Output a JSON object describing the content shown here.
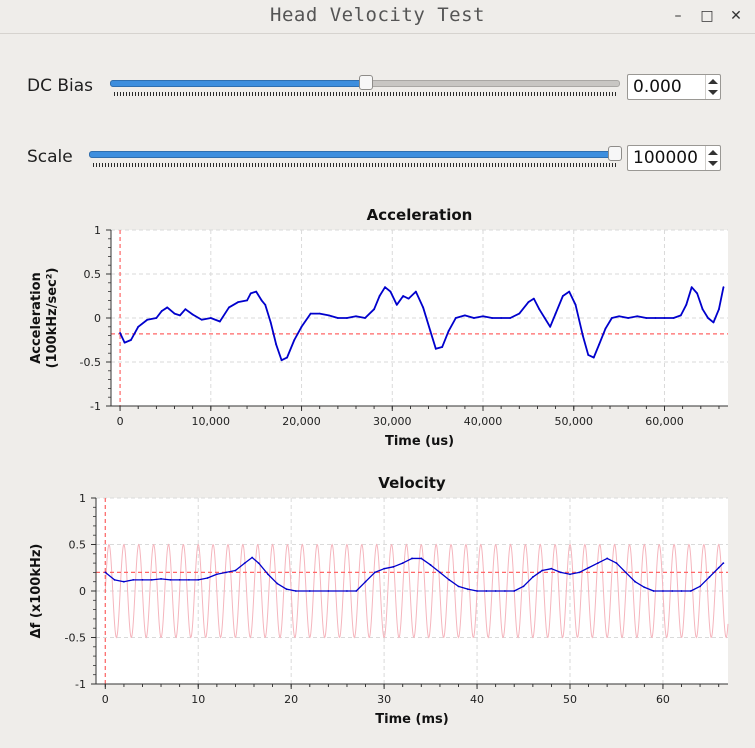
{
  "window": {
    "title": "Head Velocity Test",
    "minimize_glyph": "–",
    "maximize_glyph": "□",
    "close_glyph": "✕"
  },
  "controls": {
    "dc_bias": {
      "label": "DC Bias",
      "value": "0.000",
      "level_percent": 50
    },
    "scale": {
      "label": "Scale",
      "value": "100000",
      "level_percent": 100
    }
  },
  "colors": {
    "trace": "#0000cc",
    "reference": "#ff6666",
    "slider_fill": "#3d8ede",
    "background": "#efedea"
  },
  "chart_data": [
    {
      "type": "line",
      "title": "Acceleration",
      "xlabel": "Time (us)",
      "ylabel": [
        "Acceleration",
        "(100kHz/sec²)"
      ],
      "xlim": [
        -1000,
        67000
      ],
      "ylim": [
        -1,
        1
      ],
      "xticks": [
        0,
        10000,
        20000,
        30000,
        40000,
        50000,
        60000
      ],
      "xtick_labels": [
        "0",
        "10,000",
        "20,000",
        "30,000",
        "40,000",
        "50,000",
        "60,000"
      ],
      "yticks": [
        1,
        0.5,
        0,
        -0.5,
        -1
      ],
      "ytick_labels": [
        "1",
        "0.5",
        "0",
        "-0.5",
        "-1"
      ],
      "grid": true,
      "reference_lines": {
        "horizontal_y": -0.18,
        "vertical_x": 0
      },
      "series": [
        {
          "x": [
            0,
            500,
            1200,
            2000,
            3000,
            4000,
            4600,
            5200,
            6000,
            6600,
            7200,
            8000,
            9000,
            10000,
            11000,
            12000,
            13000,
            14000,
            14400,
            15000,
            15600,
            16000,
            16600,
            17200,
            17800,
            18400,
            19200,
            20000,
            21000,
            22000,
            23000,
            24000,
            25000,
            26000,
            27000,
            28000,
            28600,
            29200,
            29800,
            30500,
            31200,
            31800,
            32600,
            33400,
            34200,
            34800,
            35500,
            36200,
            37000,
            38000,
            39000,
            40000,
            41000,
            42000,
            43000,
            44000,
            45000,
            45600,
            46200,
            46800,
            47400,
            48000,
            48800,
            49500,
            50200,
            51000,
            51600,
            52200,
            52800,
            53500,
            54200,
            55000,
            56000,
            57000,
            58000,
            59000,
            60000,
            61000,
            61800,
            62400,
            63000,
            63600,
            64200,
            64800,
            65400,
            66000,
            66500
          ],
          "y": [
            -0.17,
            -0.28,
            -0.25,
            -0.1,
            -0.02,
            0.0,
            0.08,
            0.12,
            0.05,
            0.03,
            0.1,
            0.04,
            -0.02,
            0.0,
            -0.04,
            0.12,
            0.18,
            0.2,
            0.28,
            0.3,
            0.2,
            0.15,
            -0.05,
            -0.3,
            -0.48,
            -0.45,
            -0.25,
            -0.1,
            0.05,
            0.05,
            0.03,
            0.0,
            0.0,
            0.02,
            0.0,
            0.1,
            0.25,
            0.35,
            0.3,
            0.15,
            0.25,
            0.22,
            0.3,
            0.12,
            -0.15,
            -0.35,
            -0.33,
            -0.15,
            0.0,
            0.03,
            0.0,
            0.02,
            0.0,
            0.0,
            0.0,
            0.05,
            0.18,
            0.22,
            0.1,
            0.0,
            -0.1,
            0.05,
            0.25,
            0.3,
            0.15,
            -0.2,
            -0.42,
            -0.45,
            -0.3,
            -0.12,
            0.0,
            0.02,
            0.0,
            0.02,
            0.0,
            0.0,
            0.0,
            0.0,
            0.03,
            0.15,
            0.35,
            0.28,
            0.1,
            0.0,
            -0.05,
            0.1,
            0.35
          ]
        }
      ]
    },
    {
      "type": "line",
      "title": "Velocity",
      "xlabel": "Time (ms)",
      "ylabel": [
        "Δf (x100kHz)"
      ],
      "xlim": [
        -1,
        67
      ],
      "ylim": [
        -1,
        1
      ],
      "xticks": [
        0,
        10,
        20,
        30,
        40,
        50,
        60
      ],
      "xtick_labels": [
        "0",
        "10",
        "20",
        "30",
        "40",
        "50",
        "60"
      ],
      "yticks": [
        1,
        0.5,
        0,
        -0.5,
        -1
      ],
      "ytick_labels": [
        "1",
        "0.5",
        "0",
        "-0.5",
        "-1"
      ],
      "grid": true,
      "reference_lines": {
        "horizontal_y": 0.2,
        "vertical_x": 0
      },
      "reference_sine": {
        "amplitude": 0.5,
        "period_ms": 1.6
      },
      "series": [
        {
          "x": [
            0,
            1,
            2,
            3,
            4,
            5,
            6,
            7,
            8,
            9,
            10,
            11,
            12,
            13,
            14,
            15,
            15.8,
            16.5,
            17.5,
            18.5,
            19.5,
            20.5,
            22,
            24,
            26,
            27,
            28,
            29,
            30,
            31,
            32,
            33,
            34,
            35,
            36,
            37,
            38,
            39,
            40,
            41,
            42,
            43,
            44,
            45,
            46,
            47,
            48,
            49,
            50,
            51,
            52,
            53,
            54,
            55,
            56,
            57,
            58,
            59,
            60,
            61,
            62,
            63,
            64,
            65,
            66,
            66.5
          ],
          "y": [
            0.2,
            0.12,
            0.1,
            0.12,
            0.12,
            0.12,
            0.13,
            0.12,
            0.12,
            0.12,
            0.12,
            0.14,
            0.18,
            0.2,
            0.22,
            0.3,
            0.36,
            0.3,
            0.18,
            0.08,
            0.02,
            0.0,
            0.0,
            0.0,
            0.0,
            0.0,
            0.1,
            0.2,
            0.24,
            0.26,
            0.3,
            0.35,
            0.35,
            0.28,
            0.2,
            0.12,
            0.05,
            0.02,
            0.0,
            0.0,
            0.0,
            0.0,
            0.0,
            0.05,
            0.15,
            0.22,
            0.24,
            0.2,
            0.18,
            0.2,
            0.25,
            0.3,
            0.35,
            0.3,
            0.2,
            0.1,
            0.04,
            0.0,
            0.0,
            0.0,
            0.0,
            0.0,
            0.05,
            0.15,
            0.25,
            0.3
          ]
        }
      ]
    }
  ]
}
